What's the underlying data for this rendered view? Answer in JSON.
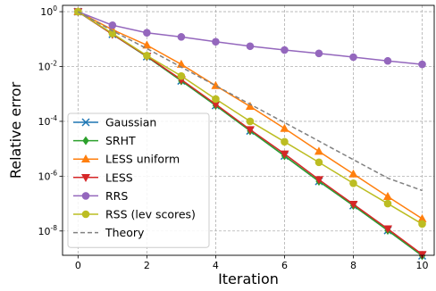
{
  "chart_data": {
    "type": "line",
    "xlabel": "Iteration",
    "ylabel": "Relative error",
    "yscale": "log",
    "xlim": [
      -0.45,
      10.35
    ],
    "ylim": [
      1.3e-09,
      1.7
    ],
    "grid": true,
    "legend_position": "bottom-left",
    "xticks": [
      {
        "value": 0,
        "label": "0"
      },
      {
        "value": 2,
        "label": "2"
      },
      {
        "value": 4,
        "label": "4"
      },
      {
        "value": 6,
        "label": "6"
      },
      {
        "value": 8,
        "label": "8"
      },
      {
        "value": 10,
        "label": "10"
      }
    ],
    "yticks": [
      {
        "value": 1,
        "base": "10",
        "exp": "0"
      },
      {
        "value": 0.01,
        "base": "10",
        "exp": "-2"
      },
      {
        "value": 0.0001,
        "base": "10",
        "exp": "-4"
      },
      {
        "value": 1e-06,
        "base": "10",
        "exp": "-6"
      },
      {
        "value": 1e-08,
        "base": "10",
        "exp": "-8"
      }
    ],
    "x": [
      0,
      1,
      2,
      3,
      4,
      5,
      6,
      7,
      8,
      9,
      10
    ],
    "series": [
      {
        "name": "Gaussian",
        "color": "#1f77b4",
        "marker": "x",
        "dashed": false,
        "values": [
          1.0,
          0.15,
          0.023,
          0.003,
          0.00038,
          4.5e-05,
          5.5e-06,
          6.5e-07,
          8.5e-08,
          1.05e-08,
          1.25e-09
        ]
      },
      {
        "name": "SRHT",
        "color": "#2ca02c",
        "marker": "diamond",
        "dashed": false,
        "values": [
          1.0,
          0.15,
          0.023,
          0.003,
          0.00038,
          4.5e-05,
          5.5e-06,
          6.5e-07,
          8.5e-08,
          1.05e-08,
          1.25e-09
        ]
      },
      {
        "name": "LESS uniform",
        "color": "#ff7f0e",
        "marker": "triangle-up",
        "dashed": false,
        "values": [
          1.0,
          0.22,
          0.06,
          0.012,
          0.002,
          0.00035,
          5.5e-05,
          8e-06,
          1.2e-06,
          1.8e-07,
          2.8e-08
        ]
      },
      {
        "name": "LESS",
        "color": "#d62728",
        "marker": "triangle-down",
        "dashed": false,
        "values": [
          1.0,
          0.15,
          0.024,
          0.0033,
          0.00042,
          5e-05,
          6.5e-06,
          7.5e-07,
          9.5e-08,
          1.2e-08,
          1.4e-09
        ]
      },
      {
        "name": "RRS",
        "color": "#9467bd",
        "marker": "circle",
        "dashed": false,
        "values": [
          1.0,
          0.32,
          0.17,
          0.12,
          0.08,
          0.055,
          0.04,
          0.03,
          0.022,
          0.016,
          0.012
        ]
      },
      {
        "name": "RSS (lev scores)",
        "color": "#bcbd22",
        "marker": "circle",
        "dashed": false,
        "values": [
          1.0,
          0.16,
          0.025,
          0.0045,
          0.00065,
          0.0001,
          1.8e-05,
          3.2e-06,
          5.5e-07,
          1e-07,
          1.8e-08
        ]
      },
      {
        "name": "Theory",
        "color": "#808080",
        "marker": "none",
        "dashed": true,
        "values": [
          1.0,
          0.2,
          0.045,
          0.0095,
          0.002,
          0.00042,
          9e-05,
          1.9e-05,
          4e-06,
          8.5e-07,
          3e-07
        ]
      }
    ]
  }
}
